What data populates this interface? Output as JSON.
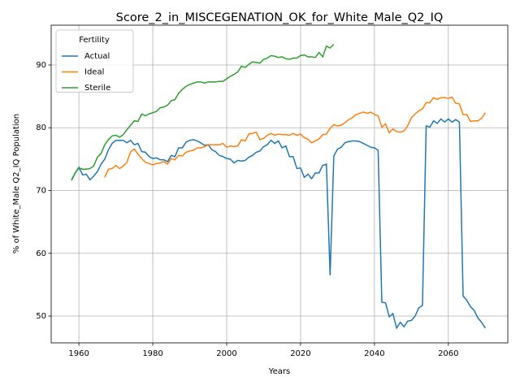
{
  "chart_data": {
    "type": "line",
    "title": "Score_2_in_MISCEGENATION_OK_for_White_Male_Q2_IQ",
    "xlabel": "Years",
    "ylabel": "% of White_Male Q2_IQ Population",
    "legend_title": "Fertility",
    "legend": "upper left",
    "grid": true,
    "xlim": [
      1952.5,
      2076.1
    ],
    "ylim": [
      45.73,
      96.34
    ],
    "xticks": [
      1960,
      1980,
      2000,
      2020,
      2040,
      2060
    ],
    "yticks": [
      50,
      60,
      70,
      80,
      90
    ],
    "x": [
      1958,
      1959,
      1960,
      1961,
      1962,
      1963,
      1964,
      1965,
      1966,
      1967,
      1968,
      1969,
      1970,
      1971,
      1972,
      1973,
      1974,
      1975,
      1976,
      1977,
      1978,
      1979,
      1980,
      1981,
      1982,
      1983,
      1984,
      1985,
      1986,
      1987,
      1988,
      1989,
      1990,
      1991,
      1992,
      1993,
      1994,
      1995,
      1996,
      1997,
      1998,
      1999,
      2000,
      2001,
      2002,
      2003,
      2004,
      2005,
      2006,
      2007,
      2008,
      2009,
      2010,
      2011,
      2012,
      2013,
      2014,
      2015,
      2016,
      2017,
      2018,
      2019,
      2020,
      2021,
      2022,
      2023,
      2024,
      2025,
      2026,
      2027,
      2028,
      2029,
      2030,
      2031,
      2032,
      2033,
      2034,
      2035,
      2036,
      2037,
      2038,
      2039,
      2040,
      2041,
      2042,
      2043,
      2044,
      2045,
      2046,
      2047,
      2048,
      2049,
      2050,
      2051,
      2052,
      2053,
      2054,
      2055,
      2056,
      2057,
      2058,
      2059,
      2060,
      2061,
      2062,
      2063,
      2064,
      2065,
      2066,
      2067,
      2068,
      2069,
      2070
    ],
    "series": [
      {
        "name": "Actual",
        "color": "#1f77b4",
        "values": [
          71.7,
          72.8,
          73.7,
          72.5,
          72.6,
          71.7,
          72.3,
          73.0,
          74.2,
          75.0,
          76.5,
          77.5,
          78.0,
          78.0,
          78.0,
          77.6,
          78.0,
          77.3,
          77.5,
          76.2,
          76.1,
          75.4,
          75.1,
          75.2,
          74.9,
          74.9,
          74.6,
          75.6,
          75.4,
          76.8,
          76.8,
          77.7,
          78.0,
          78.1,
          77.9,
          77.6,
          77.2,
          77.3,
          76.5,
          76.2,
          75.6,
          75.4,
          75.1,
          75.0,
          74.4,
          74.8,
          74.7,
          74.8,
          75.3,
          75.6,
          76.1,
          76.3,
          77.0,
          77.3,
          78.0,
          77.5,
          77.9,
          76.8,
          77.1,
          75.4,
          75.4,
          73.5,
          73.6,
          72.1,
          72.6,
          71.9,
          72.8,
          72.8,
          74.0,
          74.2,
          56.5,
          75.5,
          76.6,
          76.9,
          77.6,
          77.8,
          77.9,
          77.9,
          77.8,
          77.5,
          77.2,
          76.9,
          76.8,
          76.4,
          52.2,
          52.1,
          49.9,
          50.4,
          48.1,
          49.0,
          48.3,
          49.2,
          49.3,
          50.0,
          51.3,
          51.7,
          80.3,
          80.1,
          81.1,
          80.7,
          81.4,
          80.9,
          81.4,
          80.9,
          81.3,
          80.9,
          53.2,
          52.5,
          51.5,
          50.9,
          49.7,
          49.0,
          48.1
        ]
      },
      {
        "name": "Ideal",
        "color": "#ff7f0e",
        "values": [
          null,
          null,
          null,
          null,
          null,
          null,
          null,
          null,
          null,
          72.1,
          73.4,
          73.5,
          74.0,
          73.5,
          73.9,
          74.5,
          76.2,
          76.6,
          75.8,
          75.1,
          74.5,
          74.3,
          74.1,
          74.3,
          74.4,
          74.6,
          74.2,
          75.1,
          74.9,
          75.6,
          75.5,
          76.1,
          76.3,
          76.4,
          76.8,
          76.8,
          77.0,
          77.3,
          77.3,
          77.3,
          77.3,
          77.5,
          76.9,
          77.1,
          77.0,
          77.1,
          78.1,
          77.9,
          79.0,
          79.1,
          79.3,
          78.1,
          78.3,
          78.8,
          79.1,
          78.8,
          79.0,
          78.9,
          78.9,
          78.8,
          79.1,
          78.8,
          79.0,
          78.4,
          78.2,
          77.6,
          77.9,
          78.2,
          78.9,
          79.0,
          79.9,
          80.5,
          80.3,
          80.4,
          80.8,
          81.3,
          81.6,
          82.1,
          82.3,
          82.5,
          82.3,
          82.5,
          82.1,
          81.9,
          80.1,
          80.6,
          79.2,
          79.8,
          79.4,
          79.3,
          79.5,
          80.3,
          81.6,
          82.2,
          82.7,
          83.0,
          84.0,
          84.0,
          84.8,
          84.5,
          84.8,
          84.8,
          84.7,
          84.9,
          83.9,
          83.8,
          82.1,
          82.1,
          81.0,
          81.1,
          81.1,
          81.5,
          82.4
        ]
      },
      {
        "name": "Sterile",
        "color": "#2ca02c",
        "values": [
          71.6,
          72.8,
          73.6,
          73.4,
          73.4,
          73.5,
          73.9,
          75.3,
          75.9,
          77.3,
          78.1,
          78.7,
          78.8,
          78.5,
          78.9,
          79.7,
          80.4,
          81.1,
          81.0,
          82.2,
          81.9,
          82.2,
          82.4,
          82.6,
          83.2,
          83.3,
          83.6,
          84.3,
          84.5,
          85.5,
          86.1,
          86.6,
          86.9,
          87.1,
          87.3,
          87.3,
          87.1,
          87.3,
          87.3,
          87.3,
          87.4,
          87.4,
          87.8,
          88.2,
          88.5,
          88.9,
          89.8,
          89.6,
          90.1,
          90.5,
          90.4,
          90.3,
          90.9,
          91.1,
          91.5,
          91.4,
          91.2,
          91.3,
          91.0,
          90.9,
          91.1,
          91.1,
          91.5,
          91.6,
          91.3,
          91.3,
          91.2,
          92.0,
          91.3,
          93.0,
          92.7,
          93.3,
          null,
          null,
          null,
          null,
          null,
          null,
          null,
          null,
          null,
          null,
          null,
          null,
          null,
          null,
          null,
          null,
          null,
          null,
          null,
          null,
          null,
          null,
          null,
          null,
          null,
          null,
          null,
          null,
          null,
          null,
          null,
          null,
          null,
          null,
          null,
          null,
          null,
          null,
          null,
          null,
          null
        ]
      }
    ]
  }
}
